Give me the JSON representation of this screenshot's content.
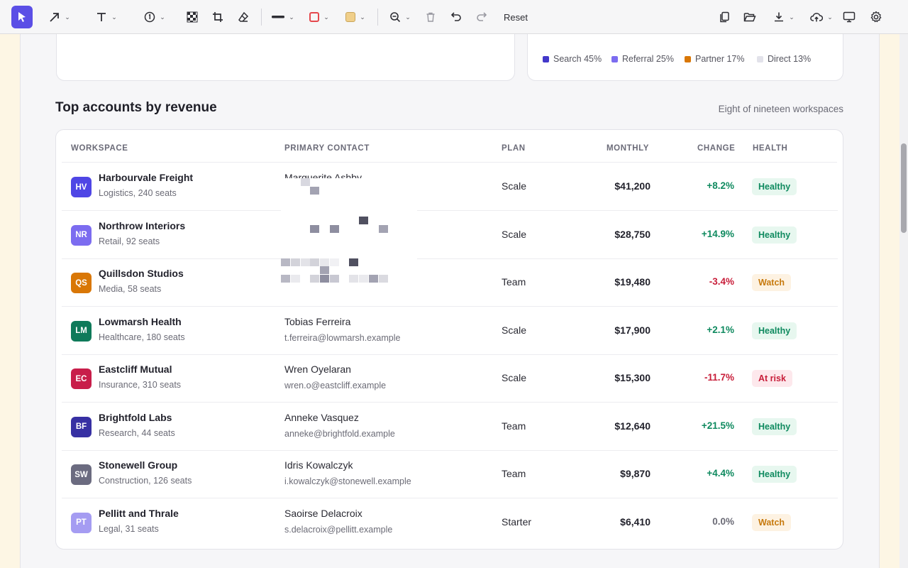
{
  "toolbar": {
    "tools": [
      {
        "name": "select-tool",
        "icon": "cursor-arrow-icon"
      },
      {
        "name": "arrow-tool",
        "icon": "diagonal-arrow-icon"
      },
      {
        "name": "text-tool",
        "icon": "text-t-icon"
      },
      {
        "name": "step-tool",
        "icon": "numbered-circle-icon"
      },
      {
        "name": "pixelate-tool",
        "icon": "checkerboard-icon"
      },
      {
        "name": "crop-tool",
        "icon": "crop-icon"
      },
      {
        "name": "eraser-tool",
        "icon": "eraser-icon"
      },
      {
        "name": "line-width",
        "icon": "line-width-icon"
      },
      {
        "name": "stroke-color",
        "icon": "stroke-color-icon"
      },
      {
        "name": "fill-color",
        "icon": "fill-color-icon"
      },
      {
        "name": "zoom",
        "icon": "zoom-out-icon"
      },
      {
        "name": "delete",
        "icon": "trash-icon"
      },
      {
        "name": "undo",
        "icon": "undo-icon"
      },
      {
        "name": "redo",
        "icon": "redo-icon"
      }
    ],
    "reset_label": "Reset",
    "right_tools": [
      "copy-icon",
      "folder-open-icon",
      "download-icon",
      "cloud-upload-icon",
      "monitor-icon",
      "gear-icon"
    ],
    "colors": {
      "accent": "#5b4fe6",
      "stroke": "#e5484d",
      "fill": "#f0cf8a"
    }
  },
  "traffic_legend": [
    {
      "label": "Search 45%",
      "color": "#4338ca"
    },
    {
      "label": "Referral 25%",
      "color": "#7c6cf0"
    },
    {
      "label": "Partner 17%",
      "color": "#d97706"
    },
    {
      "label": "Direct 13%",
      "color": "#e2e2ea"
    }
  ],
  "accounts": {
    "title": "Top accounts by revenue",
    "subtitle": "Eight of nineteen workspaces",
    "columns": {
      "workspace": "WORKSPACE",
      "contact": "PRIMARY CONTACT",
      "plan": "PLAN",
      "monthly": "MONTHLY",
      "change": "CHANGE",
      "health": "HEALTH"
    },
    "rows": [
      {
        "initials": "HV",
        "avatar_color": "#4f46e5",
        "name": "Harbourvale Freight",
        "meta": "Logistics, 240 seats",
        "contact": "Marguerite Ashby",
        "email": "",
        "plan": "Scale",
        "monthly": "$41,200",
        "change": "+8.2%",
        "trend": "up",
        "health": "Healthy"
      },
      {
        "initials": "NR",
        "avatar_color": "#7c6cf0",
        "name": "Northrow Interiors",
        "meta": "Retail, 92 seats",
        "contact": "",
        "email": "",
        "plan": "Scale",
        "monthly": "$28,750",
        "change": "+14.9%",
        "trend": "up",
        "health": "Healthy"
      },
      {
        "initials": "QS",
        "avatar_color": "#d97706",
        "name": "Quillsdon Studios",
        "meta": "Media, 58 seats",
        "contact": "",
        "email": "",
        "plan": "Team",
        "monthly": "$19,480",
        "change": "-3.4%",
        "trend": "down",
        "health": "Watch"
      },
      {
        "initials": "LM",
        "avatar_color": "#0f7a5a",
        "name": "Lowmarsh Health",
        "meta": "Healthcare, 180 seats",
        "contact": "Tobias Ferreira",
        "email": "t.ferreira@lowmarsh.example",
        "plan": "Scale",
        "monthly": "$17,900",
        "change": "+2.1%",
        "trend": "up",
        "health": "Healthy"
      },
      {
        "initials": "EC",
        "avatar_color": "#c81e4a",
        "name": "Eastcliff Mutual",
        "meta": "Insurance, 310 seats",
        "contact": "Wren Oyelaran",
        "email": "wren.o@eastcliff.example",
        "plan": "Scale",
        "monthly": "$15,300",
        "change": "-11.7%",
        "trend": "down",
        "health": "At risk"
      },
      {
        "initials": "BF",
        "avatar_color": "#3730a3",
        "name": "Brightfold Labs",
        "meta": "Research, 44 seats",
        "contact": "Anneke Vasquez",
        "email": "anneke@brightfold.example",
        "plan": "Team",
        "monthly": "$12,640",
        "change": "+21.5%",
        "trend": "up",
        "health": "Healthy"
      },
      {
        "initials": "SW",
        "avatar_color": "#6b6b80",
        "name": "Stonewell Group",
        "meta": "Construction, 126 seats",
        "contact": "Idris Kowalczyk",
        "email": "i.kowalczyk@stonewell.example",
        "plan": "Team",
        "monthly": "$9,870",
        "change": "+4.4%",
        "trend": "up",
        "health": "Healthy"
      },
      {
        "initials": "PT",
        "avatar_color": "#a59cf2",
        "name": "Pellitt and Thrale",
        "meta": "Legal, 31 seats",
        "contact": "Saoirse Delacroix",
        "email": "s.delacroix@pellitt.example",
        "plan": "Starter",
        "monthly": "$6,410",
        "change": "0.0%",
        "trend": "flat",
        "health": "Watch"
      }
    ]
  },
  "status_colors": {
    "up": "#0f8a5f",
    "down": "#c81e3a",
    "flat": "#6b6b76",
    "Healthy": {
      "bg": "#e7f7ef",
      "fg": "#0f8a5f"
    },
    "Watch": {
      "bg": "#fdf2e2",
      "fg": "#c77a0e"
    },
    "At risk": {
      "bg": "#fde8ec",
      "fg": "#c81e3a"
    }
  }
}
